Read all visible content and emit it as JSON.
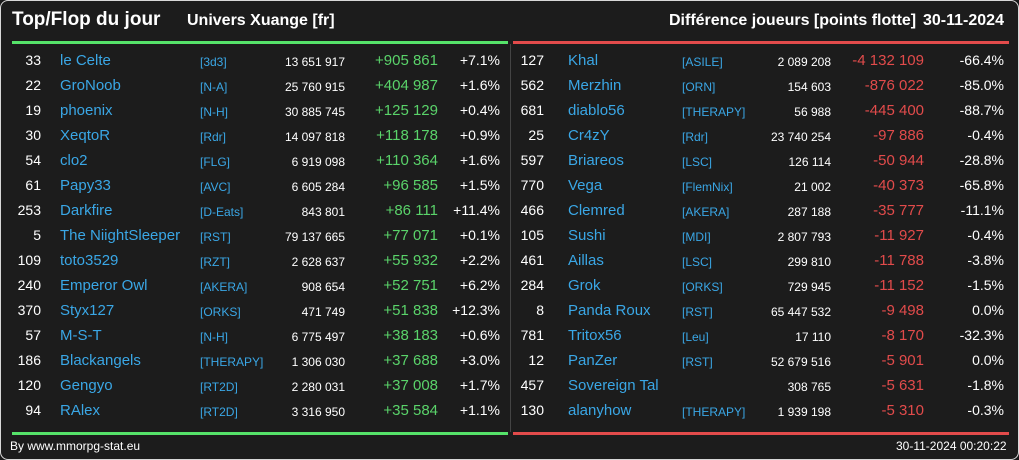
{
  "header": {
    "title": "Top/Flop du jour",
    "universe": "Univers Xuange [fr]",
    "subtitle": "Différence joueurs [points flotte]",
    "date": "30-11-2024"
  },
  "colors": {
    "top_accent": "#56e36a",
    "flop_accent": "#e24b4b",
    "link": "#3aa7e6",
    "background": "#1c1c1c"
  },
  "top": [
    {
      "rank": "33",
      "name": "le Celte",
      "alliance": "[3d3]",
      "points": "13 651 917",
      "diff": "+905 861",
      "pct": "+7.1%"
    },
    {
      "rank": "22",
      "name": "GroNoob",
      "alliance": "[N-A]",
      "points": "25 760 915",
      "diff": "+404 987",
      "pct": "+1.6%"
    },
    {
      "rank": "19",
      "name": "phoenix",
      "alliance": "[N-H]",
      "points": "30 885 745",
      "diff": "+125 129",
      "pct": "+0.4%"
    },
    {
      "rank": "30",
      "name": "XeqtoR",
      "alliance": "[Rdr]",
      "points": "14 097 818",
      "diff": "+118 178",
      "pct": "+0.9%"
    },
    {
      "rank": "54",
      "name": "clo2",
      "alliance": "[FLG]",
      "points": "6 919 098",
      "diff": "+110 364",
      "pct": "+1.6%"
    },
    {
      "rank": "61",
      "name": "Papy33",
      "alliance": "[AVC]",
      "points": "6 605 284",
      "diff": "+96 585",
      "pct": "+1.5%"
    },
    {
      "rank": "253",
      "name": "Darkfire",
      "alliance": "[D-Eats]",
      "points": "843 801",
      "diff": "+86 111",
      "pct": "+11.4%"
    },
    {
      "rank": "5",
      "name": "The NiightSleeper",
      "alliance": "[RST]",
      "points": "79 137 665",
      "diff": "+77 071",
      "pct": "+0.1%"
    },
    {
      "rank": "109",
      "name": "toto3529",
      "alliance": "[RZT]",
      "points": "2 628 637",
      "diff": "+55 932",
      "pct": "+2.2%"
    },
    {
      "rank": "240",
      "name": "Emperor Owl",
      "alliance": "[AKERA]",
      "points": "908 654",
      "diff": "+52 751",
      "pct": "+6.2%"
    },
    {
      "rank": "370",
      "name": "Styx127",
      "alliance": "[ORKS]",
      "points": "471 749",
      "diff": "+51 838",
      "pct": "+12.3%"
    },
    {
      "rank": "57",
      "name": "M-S-T",
      "alliance": "[N-H]",
      "points": "6 775 497",
      "diff": "+38 183",
      "pct": "+0.6%"
    },
    {
      "rank": "186",
      "name": "Blackangels",
      "alliance": "[THERAPY]",
      "points": "1 306 030",
      "diff": "+37 688",
      "pct": "+3.0%"
    },
    {
      "rank": "120",
      "name": "Gengyo",
      "alliance": "[RT2D]",
      "points": "2 280 031",
      "diff": "+37 008",
      "pct": "+1.7%"
    },
    {
      "rank": "94",
      "name": "RAlex",
      "alliance": "[RT2D]",
      "points": "3 316 950",
      "diff": "+35 584",
      "pct": "+1.1%"
    }
  ],
  "flop": [
    {
      "rank": "127",
      "name": "Khal",
      "alliance": "[ASILE]",
      "points": "2 089 208",
      "diff": "-4 132 109",
      "pct": "-66.4%"
    },
    {
      "rank": "562",
      "name": "Merzhin",
      "alliance": "[ORN]",
      "points": "154 603",
      "diff": "-876 022",
      "pct": "-85.0%"
    },
    {
      "rank": "681",
      "name": "diablo56",
      "alliance": "[THERAPY]",
      "points": "56 988",
      "diff": "-445 400",
      "pct": "-88.7%"
    },
    {
      "rank": "25",
      "name": "Cr4zY",
      "alliance": "[Rdr]",
      "points": "23 740 254",
      "diff": "-97 886",
      "pct": "-0.4%"
    },
    {
      "rank": "597",
      "name": "Briareos",
      "alliance": "[LSC]",
      "points": "126 114",
      "diff": "-50 944",
      "pct": "-28.8%"
    },
    {
      "rank": "770",
      "name": "Vega",
      "alliance": "[FlemNix]",
      "points": "21 002",
      "diff": "-40 373",
      "pct": "-65.8%"
    },
    {
      "rank": "466",
      "name": "Clemred",
      "alliance": "[AKERA]",
      "points": "287 188",
      "diff": "-35 777",
      "pct": "-11.1%"
    },
    {
      "rank": "105",
      "name": "Sushi",
      "alliance": "[MDI]",
      "points": "2 807 793",
      "diff": "-11 927",
      "pct": "-0.4%"
    },
    {
      "rank": "461",
      "name": "Aillas",
      "alliance": "[LSC]",
      "points": "299 810",
      "diff": "-11 788",
      "pct": "-3.8%"
    },
    {
      "rank": "284",
      "name": "Grok",
      "alliance": "[ORKS]",
      "points": "729 945",
      "diff": "-11 152",
      "pct": "-1.5%"
    },
    {
      "rank": "8",
      "name": "Panda Roux",
      "alliance": "[RST]",
      "points": "65 447 532",
      "diff": "-9 498",
      "pct": "0.0%"
    },
    {
      "rank": "781",
      "name": "Tritox56",
      "alliance": "[Leu]",
      "points": "17 110",
      "diff": "-8 170",
      "pct": "-32.3%"
    },
    {
      "rank": "12",
      "name": "PanZer",
      "alliance": "[RST]",
      "points": "52 679 516",
      "diff": "-5 901",
      "pct": "0.0%"
    },
    {
      "rank": "457",
      "name": "Sovereign Tal",
      "alliance": "",
      "points": "308 765",
      "diff": "-5 631",
      "pct": "-1.8%"
    },
    {
      "rank": "130",
      "name": "alanyhow",
      "alliance": "[THERAPY]",
      "points": "1 939 198",
      "diff": "-5 310",
      "pct": "-0.3%"
    }
  ],
  "footer": {
    "credit": "By www.mmorpg-stat.eu",
    "timestamp": "30-11-2024 00:20:22"
  }
}
